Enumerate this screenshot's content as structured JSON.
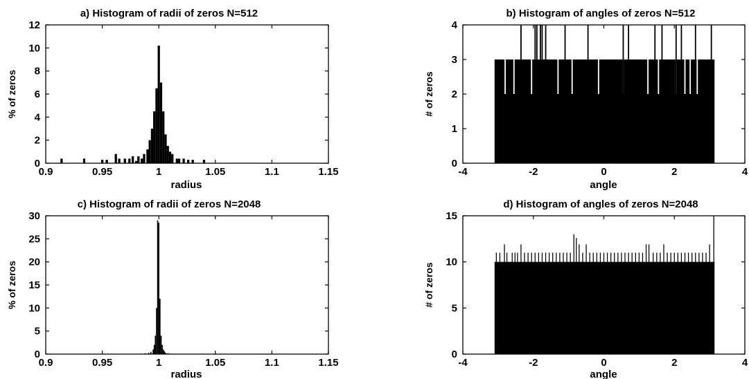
{
  "chart_data": [
    {
      "type": "bar",
      "title": "a) Histogram of radii of zeros N=512",
      "xlabel": "radius",
      "ylabel": "% of zeros",
      "xlim": [
        0.9,
        1.15
      ],
      "ylim": [
        0,
        12
      ],
      "xticks": [
        "0.9",
        "0.95",
        "1",
        "1.05",
        "1.1",
        "1.15"
      ],
      "yticks": [
        "0",
        "2",
        "4",
        "6",
        "8",
        "10",
        "12"
      ],
      "bin_width": 0.002,
      "x": [
        0.914,
        0.934,
        0.95,
        0.954,
        0.962,
        0.965,
        0.97,
        0.974,
        0.977,
        0.98,
        0.982,
        0.985,
        0.987,
        0.99,
        0.992,
        0.994,
        0.996,
        0.998,
        1.0,
        1.002,
        1.004,
        1.006,
        1.008,
        1.01,
        1.012,
        1.016,
        1.018,
        1.022,
        1.026,
        1.03,
        1.04
      ],
      "values": [
        0.4,
        0.4,
        0.3,
        0.3,
        0.8,
        0.4,
        0.4,
        0.4,
        0.6,
        0.2,
        0.6,
        0.4,
        0.8,
        1.2,
        2.0,
        3.0,
        4.5,
        6.5,
        10.2,
        7.0,
        4.5,
        2.5,
        1.5,
        1.0,
        0.8,
        0.4,
        0.4,
        0.4,
        0.3,
        0.3,
        0.3
      ]
    },
    {
      "type": "bar",
      "title": "b) Histogram of angles of zeros N=512",
      "xlabel": "angle",
      "ylabel": "# of zeros",
      "xlim": [
        -4,
        4
      ],
      "ylim": [
        0,
        4
      ],
      "xticks": [
        "-4",
        "-2",
        "0",
        "2",
        "4"
      ],
      "yticks": [
        "0",
        "1",
        "2",
        "3",
        "4"
      ],
      "range": [
        -3.1,
        3.14
      ],
      "base_level": 2,
      "fill_level": 3,
      "spikes_level_4": [
        -1.65,
        -2.35,
        -1.95,
        -1.9,
        -1.8,
        -1.75,
        -1.1,
        -0.45,
        0.55,
        0.7,
        1.45,
        1.65,
        2.05,
        2.2,
        2.6,
        3.05
      ],
      "dips_level_2": [
        -2.8,
        -2.55,
        -2.05,
        -1.3,
        -0.9,
        -0.15,
        0.55,
        1.25,
        1.55,
        2.05,
        2.3,
        2.45,
        2.65
      ]
    },
    {
      "type": "bar",
      "title": "c) Histogram of radii of zeros N=2048",
      "xlabel": "radius",
      "ylabel": "% of zeros",
      "xlim": [
        0.9,
        1.15
      ],
      "ylim": [
        0,
        30
      ],
      "xticks": [
        "0.9",
        "0.95",
        "1",
        "1.05",
        "1.1",
        "1.15"
      ],
      "yticks": [
        "0",
        "5",
        "10",
        "15",
        "20",
        "25",
        "30"
      ],
      "bin_width": 0.001,
      "x": [
        0.984,
        0.988,
        0.991,
        0.993,
        0.995,
        0.996,
        0.997,
        0.998,
        0.999,
        1.0,
        1.001,
        1.002,
        1.003,
        1.004,
        1.005,
        1.006,
        1.008,
        1.01
      ],
      "values": [
        0.1,
        0.2,
        0.3,
        0.5,
        1.0,
        2.0,
        4.0,
        10.0,
        29.0,
        28.5,
        12.0,
        4.0,
        2.0,
        1.0,
        0.6,
        0.3,
        0.2,
        0.1
      ]
    },
    {
      "type": "bar",
      "title": "d) Histogram of angles of zeros N=2048",
      "xlabel": "angle",
      "ylabel": "# of zeros",
      "xlim": [
        -4,
        4
      ],
      "ylim": [
        0,
        15
      ],
      "xticks": [
        "-4",
        "-2",
        "0",
        "2",
        "4"
      ],
      "yticks": [
        "0",
        "5",
        "10",
        "15"
      ],
      "range": [
        -3.1,
        3.14
      ],
      "base_level": 10,
      "spike_width": 0.025,
      "spikes": [
        {
          "x": -3.05,
          "v": 11
        },
        {
          "x": -2.95,
          "v": 11
        },
        {
          "x": -2.82,
          "v": 11.9
        },
        {
          "x": -2.75,
          "v": 11
        },
        {
          "x": -2.6,
          "v": 11
        },
        {
          "x": -2.52,
          "v": 11
        },
        {
          "x": -2.45,
          "v": 11
        },
        {
          "x": -2.35,
          "v": 11.9
        },
        {
          "x": -2.25,
          "v": 11
        },
        {
          "x": -2.15,
          "v": 11
        },
        {
          "x": -2.05,
          "v": 11
        },
        {
          "x": -1.95,
          "v": 11
        },
        {
          "x": -1.85,
          "v": 11
        },
        {
          "x": -1.75,
          "v": 11
        },
        {
          "x": -1.65,
          "v": 11
        },
        {
          "x": -1.55,
          "v": 11
        },
        {
          "x": -1.45,
          "v": 11
        },
        {
          "x": -1.35,
          "v": 11
        },
        {
          "x": -1.25,
          "v": 11
        },
        {
          "x": -1.15,
          "v": 11
        },
        {
          "x": -1.05,
          "v": 11
        },
        {
          "x": -0.95,
          "v": 11
        },
        {
          "x": -0.85,
          "v": 13
        },
        {
          "x": -0.78,
          "v": 12.6
        },
        {
          "x": -0.7,
          "v": 11.9
        },
        {
          "x": -0.6,
          "v": 11
        },
        {
          "x": -0.5,
          "v": 11.9
        },
        {
          "x": -0.4,
          "v": 11
        },
        {
          "x": -0.3,
          "v": 11
        },
        {
          "x": -0.2,
          "v": 11
        },
        {
          "x": -0.1,
          "v": 11
        },
        {
          "x": 0.0,
          "v": 11
        },
        {
          "x": 0.1,
          "v": 11
        },
        {
          "x": 0.2,
          "v": 11
        },
        {
          "x": 0.3,
          "v": 11
        },
        {
          "x": 0.4,
          "v": 11
        },
        {
          "x": 0.5,
          "v": 11
        },
        {
          "x": 0.6,
          "v": 11
        },
        {
          "x": 0.7,
          "v": 11
        },
        {
          "x": 0.8,
          "v": 11
        },
        {
          "x": 0.9,
          "v": 11
        },
        {
          "x": 1.0,
          "v": 11
        },
        {
          "x": 1.1,
          "v": 11
        },
        {
          "x": 1.2,
          "v": 11.9
        },
        {
          "x": 1.28,
          "v": 11.9
        },
        {
          "x": 1.4,
          "v": 11
        },
        {
          "x": 1.5,
          "v": 11
        },
        {
          "x": 1.6,
          "v": 11
        },
        {
          "x": 1.7,
          "v": 11.9
        },
        {
          "x": 1.8,
          "v": 11
        },
        {
          "x": 1.9,
          "v": 11
        },
        {
          "x": 2.0,
          "v": 11
        },
        {
          "x": 2.1,
          "v": 11
        },
        {
          "x": 2.2,
          "v": 11
        },
        {
          "x": 2.3,
          "v": 11
        },
        {
          "x": 2.4,
          "v": 11
        },
        {
          "x": 2.5,
          "v": 11
        },
        {
          "x": 2.6,
          "v": 11
        },
        {
          "x": 2.7,
          "v": 11
        },
        {
          "x": 2.8,
          "v": 11
        },
        {
          "x": 2.9,
          "v": 11
        },
        {
          "x": 3.0,
          "v": 11.9
        },
        {
          "x": 3.12,
          "v": 15
        }
      ]
    }
  ]
}
